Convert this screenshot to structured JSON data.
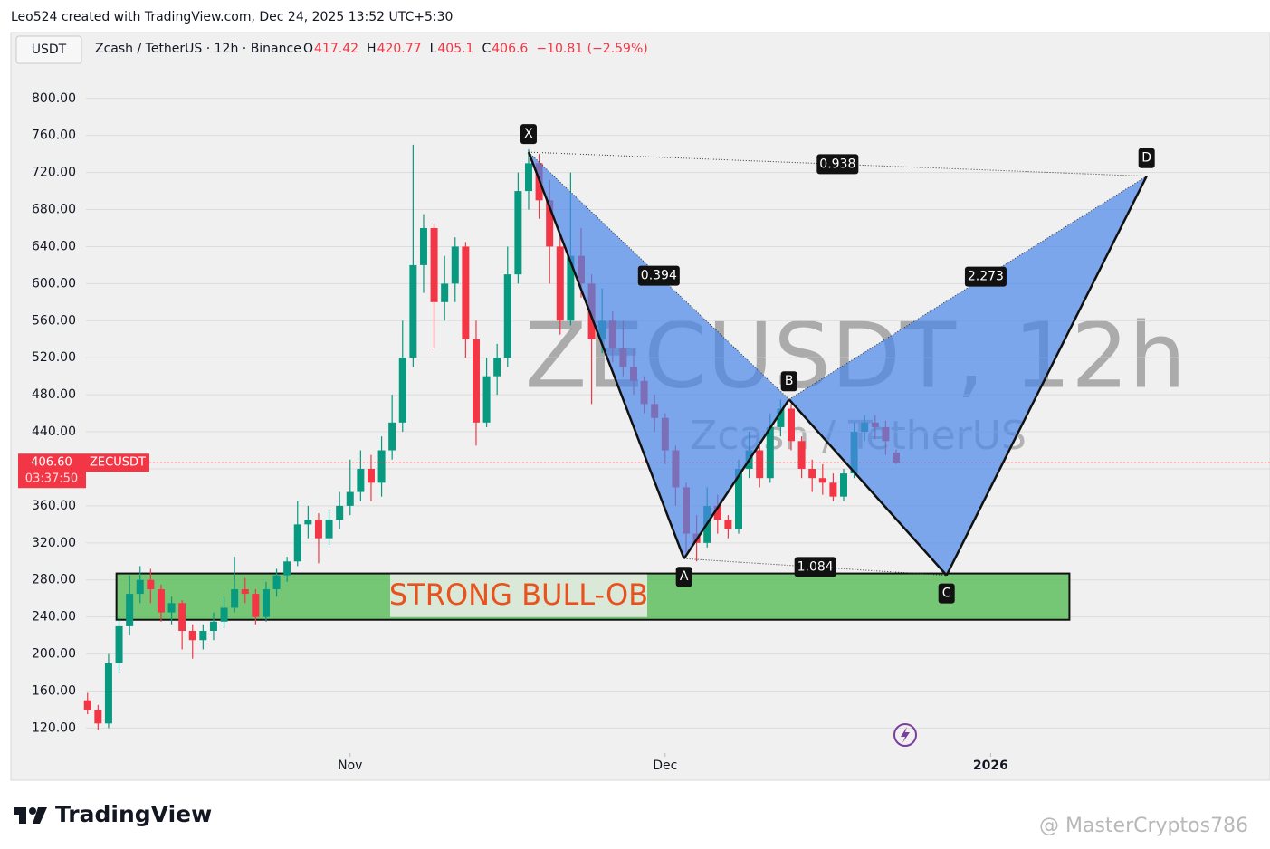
{
  "header": "Leo524 created with TradingView.com, Dec 24, 2025 13:52 UTC+5:30",
  "currency_button": "USDT",
  "symbol_line": "Zcash / TetherUS · 12h · Binance",
  "ohlc": [
    {
      "label": "O",
      "value": 417.42
    },
    {
      "label": "H",
      "value": 420.77
    },
    {
      "label": "L",
      "value": 405.1
    },
    {
      "label": "C",
      "value": 406.6
    }
  ],
  "change": "−10.81 (−2.59%)",
  "brand": "TradingView",
  "credit": "@ MasterCryptos786",
  "chart_data": {
    "type": "candlestick",
    "watermark": "ZECUSDT, 12h",
    "watermark_sub": "Zcash / TetherUS",
    "up_color": "#089981",
    "down_color": "#f23645",
    "grid": true,
    "xlim": [
      -0.3,
      225.2
    ],
    "xticks": [
      {
        "value": 50,
        "label": "Nov"
      },
      {
        "value": 110,
        "label": "Dec"
      },
      {
        "value": 172,
        "label": "2026"
      }
    ],
    "ylim": [
      95,
      833
    ],
    "yticks": [
      {
        "value": 120,
        "label": "120.00"
      },
      {
        "value": 160,
        "label": "160.00"
      },
      {
        "value": 200,
        "label": "200.00"
      },
      {
        "value": 240,
        "label": "240.00"
      },
      {
        "value": 280,
        "label": "280.00"
      },
      {
        "value": 320,
        "label": "320.00"
      },
      {
        "value": 360,
        "label": "360.00"
      },
      {
        "value": 400,
        "label": "400.00"
      },
      {
        "value": 440,
        "label": "440.00"
      },
      {
        "value": 480,
        "label": "480.00"
      },
      {
        "value": 520,
        "label": "520.00"
      },
      {
        "value": 560,
        "label": "560.00"
      },
      {
        "value": 600,
        "label": "600.00"
      },
      {
        "value": 640,
        "label": "640.00"
      },
      {
        "value": 680,
        "label": "680.00"
      },
      {
        "value": 720,
        "label": "720.00"
      },
      {
        "value": 760,
        "label": "760.00"
      },
      {
        "value": 800,
        "label": "800.00"
      }
    ],
    "x": [
      0,
      2,
      4,
      6,
      8,
      10,
      12,
      14,
      16,
      18,
      20,
      22,
      24,
      26,
      28,
      30,
      32,
      34,
      36,
      38,
      40,
      42,
      44,
      46,
      48,
      50,
      52,
      54,
      56,
      58,
      60,
      62,
      64,
      66,
      68,
      70,
      72,
      74,
      76,
      78,
      80,
      82,
      84,
      86,
      88,
      90,
      92,
      94,
      96,
      98,
      100,
      102,
      104,
      106,
      108,
      110,
      112,
      114,
      116,
      118,
      120,
      122,
      124,
      126,
      128,
      130,
      132,
      134,
      136,
      138,
      140,
      142,
      144,
      146,
      148,
      150,
      152,
      154
    ],
    "open": [
      150,
      140,
      125,
      190,
      230,
      265,
      280,
      270,
      245,
      255,
      225,
      215,
      225,
      235,
      250,
      270,
      265,
      240,
      270,
      285,
      300,
      340,
      345,
      325,
      345,
      360,
      375,
      400,
      385,
      420,
      450,
      520,
      620,
      660,
      580,
      600,
      640,
      540,
      450,
      500,
      520,
      610,
      700,
      730,
      690,
      640,
      560,
      630,
      600,
      540,
      560,
      530,
      510,
      495,
      470,
      455,
      420,
      380,
      330,
      320,
      360,
      345,
      335,
      400,
      420,
      390,
      445,
      465,
      430,
      400,
      390,
      385,
      370,
      395,
      440,
      450,
      445,
      417.42
    ],
    "high": [
      158,
      145,
      200,
      240,
      285,
      295,
      292,
      275,
      262,
      258,
      232,
      232,
      245,
      262,
      305,
      282,
      270,
      278,
      292,
      305,
      365,
      360,
      352,
      355,
      375,
      410,
      420,
      415,
      435,
      480,
      560,
      750,
      675,
      665,
      630,
      650,
      645,
      560,
      520,
      535,
      640,
      720,
      745,
      740,
      712,
      650,
      720,
      660,
      610,
      595,
      570,
      560,
      530,
      500,
      480,
      460,
      425,
      385,
      350,
      380,
      372,
      350,
      410,
      440,
      430,
      460,
      475,
      470,
      435,
      410,
      405,
      395,
      400,
      450,
      458,
      458,
      452,
      420.77
    ],
    "low": [
      135,
      118,
      120,
      180,
      220,
      255,
      255,
      235,
      232,
      205,
      195,
      205,
      215,
      228,
      245,
      255,
      232,
      235,
      262,
      278,
      295,
      325,
      298,
      318,
      335,
      350,
      365,
      365,
      370,
      410,
      440,
      510,
      590,
      530,
      560,
      580,
      520,
      425,
      445,
      480,
      510,
      600,
      680,
      670,
      600,
      545,
      555,
      585,
      470,
      525,
      515,
      500,
      480,
      460,
      440,
      405,
      360,
      310,
      300,
      315,
      330,
      325,
      330,
      390,
      380,
      385,
      435,
      420,
      390,
      375,
      372,
      365,
      365,
      390,
      430,
      432,
      415,
      405.1
    ],
    "close": [
      140,
      125,
      190,
      230,
      265,
      280,
      270,
      245,
      255,
      225,
      215,
      225,
      235,
      250,
      270,
      265,
      240,
      270,
      285,
      300,
      340,
      345,
      325,
      345,
      360,
      375,
      400,
      385,
      420,
      450,
      520,
      620,
      660,
      580,
      600,
      640,
      540,
      450,
      500,
      520,
      610,
      700,
      730,
      690,
      640,
      560,
      630,
      600,
      540,
      560,
      530,
      510,
      495,
      470,
      455,
      420,
      380,
      330,
      320,
      360,
      345,
      335,
      400,
      420,
      390,
      445,
      465,
      430,
      400,
      390,
      385,
      370,
      395,
      440,
      450,
      445,
      430,
      406.6
    ],
    "last_price": {
      "value": 406.6,
      "label": "406.60",
      "countdown": "03:37:50",
      "symbol": "ZECUSDT"
    },
    "zone": {
      "label": "STRONG BULL-OB",
      "x": [
        5.5,
        187
      ],
      "price": [
        237,
        287
      ]
    },
    "pattern": {
      "points": [
        {
          "label": "X",
          "x": 84,
          "price": 742
        },
        {
          "label": "A",
          "x": 113.6,
          "price": 303
        },
        {
          "label": "B",
          "x": 133.6,
          "price": 475
        },
        {
          "label": "C",
          "x": 163.6,
          "price": 285
        },
        {
          "label": "D",
          "x": 201.7,
          "price": 716
        }
      ],
      "ratios": [
        0.394,
        2.273,
        1.084,
        0.938
      ]
    }
  }
}
